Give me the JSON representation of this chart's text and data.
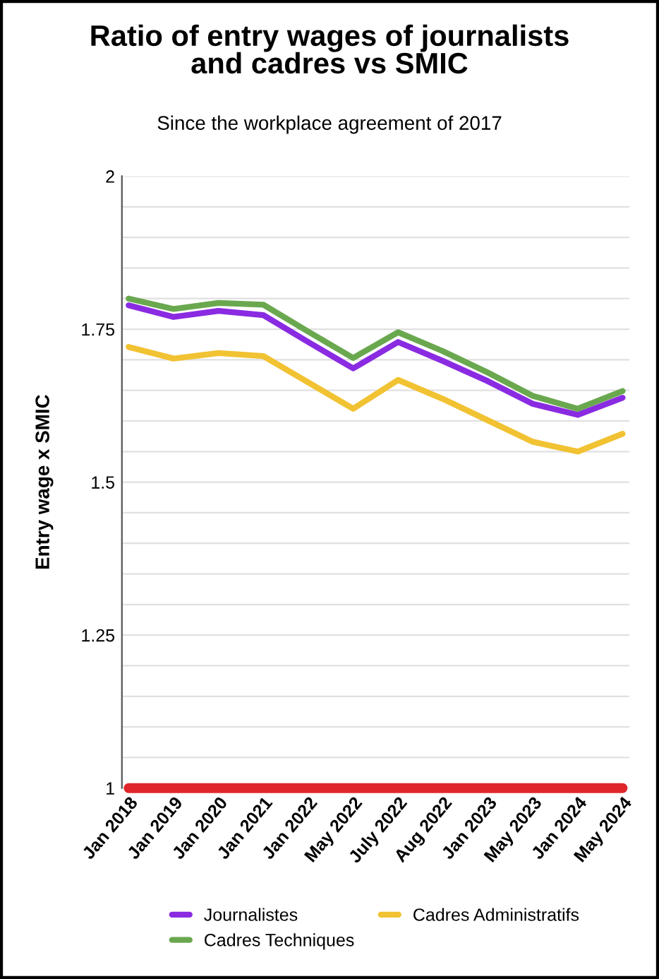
{
  "chart_data": {
    "type": "line",
    "title": "Ratio of entry wages of journalists\nand cadres vs SMIC",
    "subtitle": "Since the workplace agreement of 2017",
    "ylabel": "Entry wage x SMIC",
    "categories": [
      "Jan 2018",
      "Jan 2019",
      "Jan 2020",
      "Jan 2021",
      "Jan 2022",
      "May 2022",
      "July 2022",
      "Aug 2022",
      "Jan 2023",
      "May 2023",
      "Jan 2024",
      "May 2024"
    ],
    "series": [
      {
        "name": "Journalistes",
        "color": "#8a2be2",
        "values": [
          1.789,
          1.77,
          1.78,
          1.773,
          1.729,
          1.686,
          1.729,
          1.698,
          1.665,
          1.628,
          1.61,
          1.638
        ]
      },
      {
        "name": "Cadres Administratifs",
        "color": "#f1c232",
        "values": [
          1.721,
          1.702,
          1.711,
          1.706,
          1.663,
          1.62,
          1.667,
          1.636,
          1.601,
          1.566,
          1.55,
          1.579
        ]
      },
      {
        "name": "Cadres Techniques",
        "color": "#6aa84f",
        "values": [
          1.8,
          1.783,
          1.793,
          1.79,
          1.746,
          1.703,
          1.745,
          1.714,
          1.679,
          1.641,
          1.62,
          1.649
        ]
      },
      {
        "color": "#e0262a",
        "values": [
          1,
          1,
          1,
          1,
          1,
          1,
          1,
          1,
          1,
          1,
          1,
          1
        ]
      }
    ],
    "ylim": [
      1,
      2
    ],
    "yticks": [
      1,
      {
        "value": 1.05,
        "label": null
      },
      {
        "value": 1.1,
        "label": null
      },
      {
        "value": 1.15,
        "label": null
      },
      {
        "value": 1.2,
        "label": null
      },
      1.25,
      {
        "value": 1.3,
        "label": null
      },
      {
        "value": 1.35,
        "label": null
      },
      {
        "value": 1.4,
        "label": null
      },
      {
        "value": 1.45,
        "label": null
      },
      1.5,
      {
        "value": 1.55,
        "label": null
      },
      {
        "value": 1.6,
        "label": null
      },
      {
        "value": 1.65,
        "label": null
      },
      {
        "value": 1.7,
        "label": null
      },
      1.75,
      {
        "value": 1.8,
        "label": null
      },
      {
        "value": 1.85,
        "label": null
      },
      {
        "value": 1.9,
        "label": null
      },
      {
        "value": 1.95,
        "label": null
      },
      2
    ],
    "grid": "y",
    "legend": "bottom",
    "marker": "none",
    "line_style": "solid"
  }
}
